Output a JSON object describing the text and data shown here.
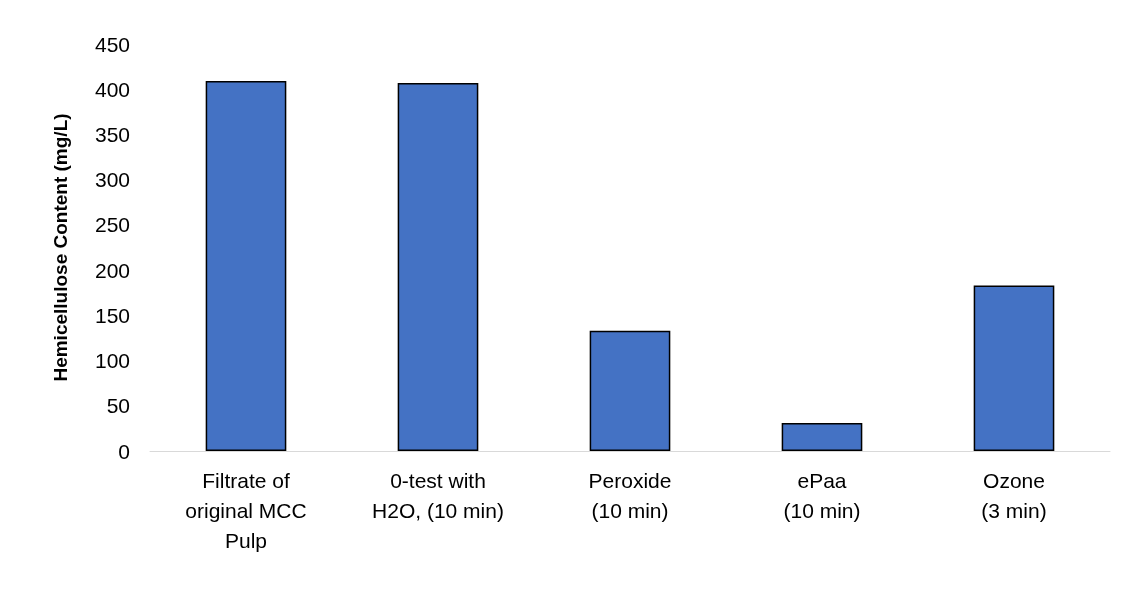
{
  "chart_data": {
    "type": "bar",
    "ylabel": "Hemicellulose Content (mg/L)",
    "categories": [
      "Filtrate of\noriginal MCC\nPulp",
      "0-test with\nH2O, (10 min)",
      "Peroxide\n(10 min)",
      "ePaa\n(10 min)",
      "Ozone\n(3 min)"
    ],
    "values": [
      409,
      407,
      133,
      31,
      183
    ],
    "color": "#4472c4",
    "ylim": [
      0,
      450
    ],
    "yticks": [
      0,
      50,
      100,
      150,
      200,
      250,
      300,
      350,
      400,
      450
    ],
    "grid": false
  }
}
